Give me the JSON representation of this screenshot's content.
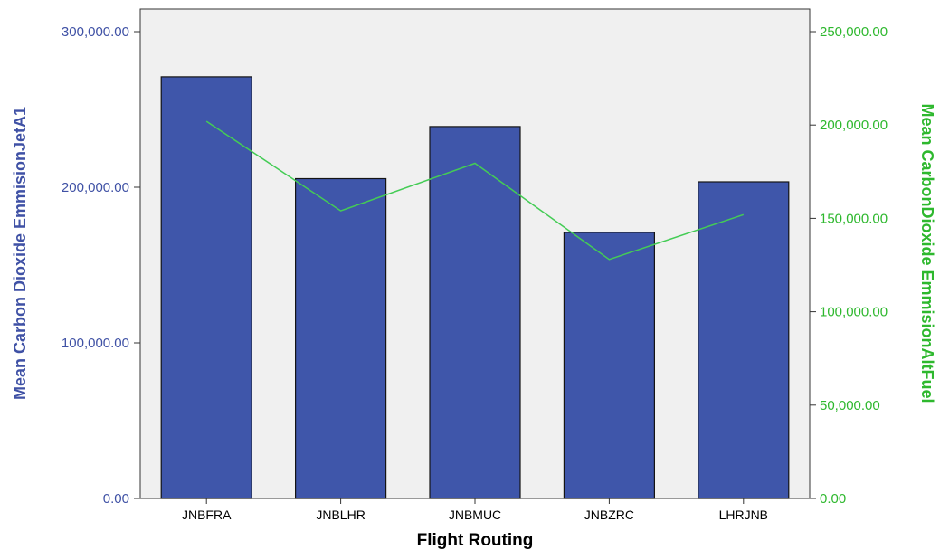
{
  "chart_data": {
    "type": "bar",
    "categories": [
      "JNBFRA",
      "JNBLHR",
      "JNBMUC",
      "JNBZRC",
      "LHRJNB"
    ],
    "series": [
      {
        "name": "Mean Carbon Dioxide EmmisionJetA1",
        "type": "bar",
        "axis": "left",
        "values": [
          271000,
          205500,
          239000,
          171000,
          203500
        ]
      },
      {
        "name": "Mean CarbonDioxide EmmisionAltFuel",
        "type": "line",
        "axis": "right",
        "values": [
          202000,
          154000,
          179500,
          128000,
          152000
        ]
      }
    ],
    "xlabel": "Flight Routing",
    "ylabel_left": "Mean Carbon Dioxide EmmisionJetA1",
    "ylabel_right": "Mean CarbonDioxide EmmisionAltFuel",
    "ylim_left": [
      0,
      300000
    ],
    "ylim_right": [
      0,
      250000
    ],
    "yticks_left": [
      "0.00",
      "100,000.00",
      "200,000.00",
      "300,000.00"
    ],
    "yticks_right": [
      "0.00",
      "50,000.00",
      "100,000.00",
      "150,000.00",
      "200,000.00",
      "250,000.00"
    ],
    "grid": false,
    "colors": {
      "bar_fill": "#3f56aa",
      "bar_stroke": "#141414",
      "line": "#44cc55",
      "left_axis_text": "#3f51a5",
      "right_axis_text": "#2eb82e",
      "plot_background": "#f0f0f0"
    }
  }
}
